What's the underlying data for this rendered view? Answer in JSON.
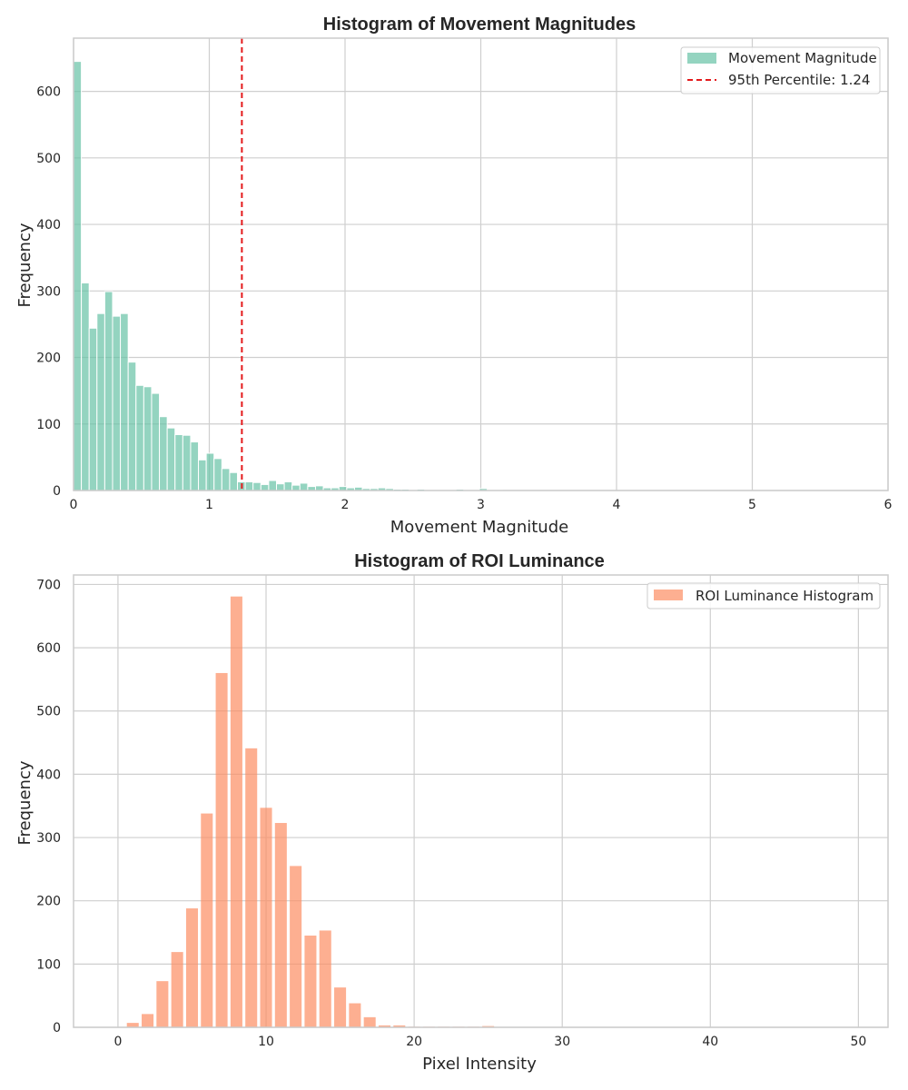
{
  "chart_data": [
    {
      "type": "bar",
      "title": "Histogram of Movement Magnitudes",
      "xlabel": "Movement Magnitude",
      "ylabel": "Frequency",
      "xlim": [
        0,
        6
      ],
      "ylim": [
        0,
        680
      ],
      "xticks": [
        0,
        1,
        2,
        3,
        4,
        5,
        6
      ],
      "yticks": [
        0,
        100,
        200,
        300,
        400,
        500,
        600
      ],
      "grid": true,
      "legend_position": "top-right",
      "bin_width": 0.0575,
      "bin_start": 0,
      "values": [
        645,
        312,
        244,
        266,
        299,
        262,
        266,
        193,
        158,
        156,
        146,
        111,
        94,
        84,
        83,
        73,
        46,
        56,
        48,
        33,
        27,
        13,
        13,
        12,
        9,
        15,
        10,
        13,
        8,
        11,
        6,
        7,
        4,
        4,
        6,
        4,
        5,
        3,
        3,
        4,
        3,
        2,
        2,
        1,
        2,
        1,
        1,
        1,
        1,
        2,
        1,
        1,
        3,
        1,
        1
      ],
      "series": [
        {
          "name": "Movement Magnitude",
          "color": "#66c2a5"
        }
      ],
      "reference_line": {
        "x": 1.24,
        "label": "95th Percentile: 1.24",
        "color": "#e41a1c",
        "style": "dashed"
      }
    },
    {
      "type": "bar",
      "title": "Histogram of ROI Luminance",
      "xlabel": "Pixel Intensity",
      "ylabel": "Frequency",
      "xlim": [
        -3,
        52
      ],
      "ylim": [
        0,
        715
      ],
      "xticks": [
        0,
        10,
        20,
        30,
        40,
        50
      ],
      "yticks": [
        0,
        100,
        200,
        300,
        400,
        500,
        600,
        700
      ],
      "grid": true,
      "legend_position": "top-right",
      "categories": [
        1,
        2,
        3,
        4,
        5,
        6,
        7,
        8,
        9,
        10,
        11,
        12,
        13,
        14,
        15,
        16,
        17,
        18,
        19,
        20,
        21,
        22,
        23,
        24,
        25
      ],
      "values": [
        7,
        21,
        73,
        119,
        188,
        338,
        560,
        681,
        441,
        347,
        323,
        255,
        145,
        153,
        63,
        38,
        16,
        3,
        3,
        1,
        1,
        1,
        1,
        1,
        2
      ],
      "series": [
        {
          "name": "ROI Luminance Histogram",
          "color": "#fc8d62"
        }
      ]
    }
  ]
}
